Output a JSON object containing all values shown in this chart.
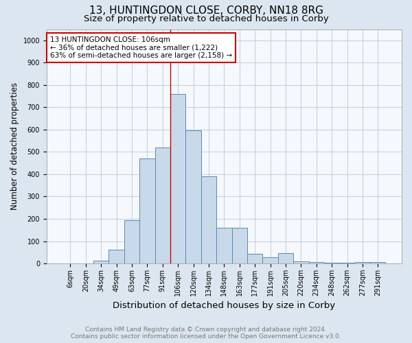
{
  "title": "13, HUNTINGDON CLOSE, CORBY, NN18 8RG",
  "subtitle": "Size of property relative to detached houses in Corby",
  "xlabel": "Distribution of detached houses by size in Corby",
  "ylabel": "Number of detached properties",
  "categories": [
    "6sqm",
    "20sqm",
    "34sqm",
    "49sqm",
    "63sqm",
    "77sqm",
    "91sqm",
    "106sqm",
    "120sqm",
    "134sqm",
    "148sqm",
    "163sqm",
    "177sqm",
    "191sqm",
    "205sqm",
    "220sqm",
    "234sqm",
    "248sqm",
    "262sqm",
    "277sqm",
    "291sqm"
  ],
  "values": [
    0,
    0,
    13,
    63,
    195,
    470,
    520,
    760,
    595,
    390,
    160,
    160,
    42,
    27,
    45,
    10,
    7,
    2,
    2,
    7,
    7
  ],
  "bar_color": "#c8d9ea",
  "bar_edge_color": "#5a8ab0",
  "highlight_index": 7,
  "vline_color": "#cc0000",
  "annotation_line1": "13 HUNTINGDON CLOSE: 106sqm",
  "annotation_line2": "← 36% of detached houses are smaller (1,222)",
  "annotation_line3": "63% of semi-detached houses are larger (2,158) →",
  "annotation_box_color": "#ffffff",
  "annotation_box_edge_color": "#cc0000",
  "ylim": [
    0,
    1050
  ],
  "yticks": [
    0,
    100,
    200,
    300,
    400,
    500,
    600,
    700,
    800,
    900,
    1000
  ],
  "background_color": "#dce6f0",
  "plot_bg_color": "#f5f8fc",
  "footer_line1": "Contains HM Land Registry data © Crown copyright and database right 2024.",
  "footer_line2": "Contains public sector information licensed under the Open Government Licence v3.0.",
  "title_fontsize": 11,
  "subtitle_fontsize": 9.5,
  "xlabel_fontsize": 9.5,
  "ylabel_fontsize": 8.5,
  "tick_fontsize": 7,
  "footer_fontsize": 6.5,
  "annotation_fontsize": 7.5,
  "grid_color": "#b8c8dc"
}
